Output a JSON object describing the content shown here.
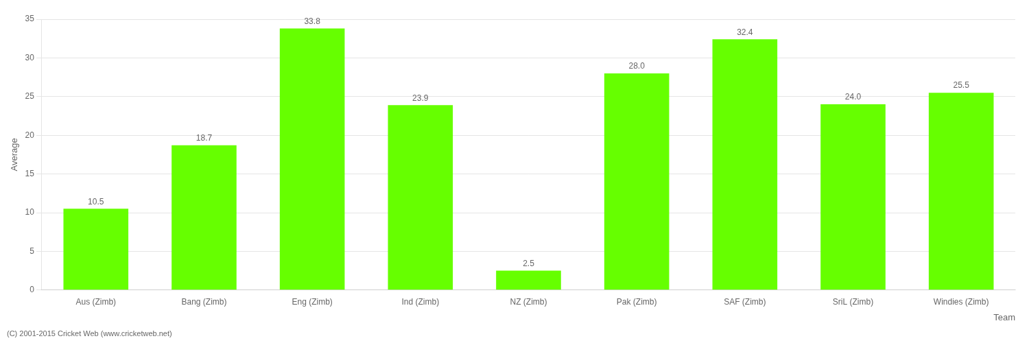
{
  "chart_data": {
    "type": "bar",
    "categories": [
      "Aus (Zimb)",
      "Bang (Zimb)",
      "Eng (Zimb)",
      "Ind (Zimb)",
      "NZ (Zimb)",
      "Pak (Zimb)",
      "SAF (Zimb)",
      "SriL (Zimb)",
      "Windies (Zimb)"
    ],
    "values": [
      10.5,
      18.7,
      33.8,
      23.9,
      2.5,
      28.0,
      32.4,
      24.0,
      25.5
    ],
    "value_labels": [
      "10.5",
      "18.7",
      "33.8",
      "23.9",
      "2.5",
      "28.0",
      "32.4",
      "24.0",
      "25.5"
    ],
    "data_labels": true,
    "color": "#66ff00",
    "xlabel": "Team",
    "ylabel": "Average",
    "annotations": [
      "(C) 2001-2015 Cricket Web (www.cricketweb.net)"
    ],
    "ylim": [
      0,
      35
    ],
    "yticks": [
      0,
      5,
      10,
      15,
      20,
      25,
      30,
      35
    ],
    "grid": true
  }
}
